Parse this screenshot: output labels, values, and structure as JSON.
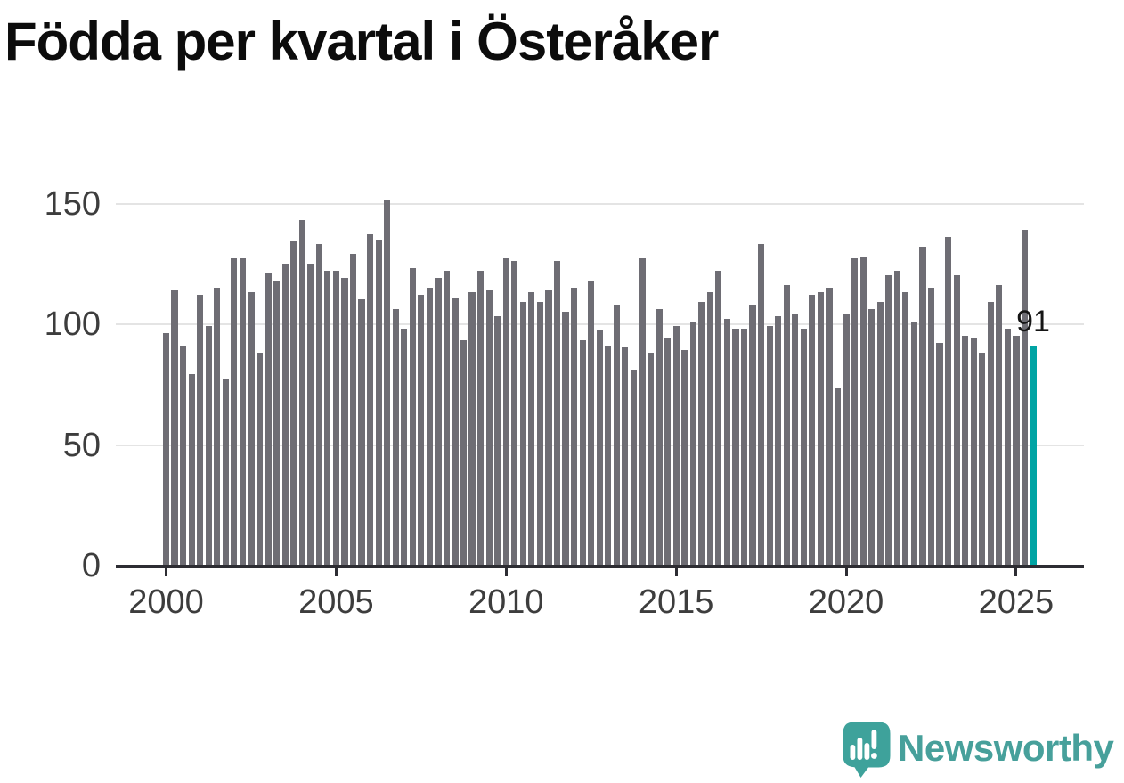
{
  "title": "Födda per kvartal i Österåker",
  "y_axis": {
    "ticks": [
      "150",
      "100",
      "50",
      "0"
    ],
    "tick_values": [
      150,
      100,
      50,
      0
    ]
  },
  "x_axis": {
    "ticks": [
      "2000",
      "2005",
      "2010",
      "2015",
      "2020",
      "2025"
    ],
    "tick_years": [
      2000,
      2005,
      2010,
      2015,
      2020,
      2025
    ]
  },
  "annotation": {
    "last_value_label": "91"
  },
  "logo": {
    "text": "Newsworthy"
  },
  "colors": {
    "bar": "#6e6d74",
    "highlight": "#00a4a4",
    "gridline": "#e4e4e4",
    "axis": "#2d2d33",
    "tick_label": "#3d3d3d",
    "title": "#0c0c0c",
    "logo_teal": "#3ea29b",
    "logo_text_teal": "#47a09b"
  },
  "chart_data": {
    "type": "bar",
    "title": "Födda per kvartal i Österåker",
    "xlabel": "",
    "ylabel": "",
    "ylim": [
      0,
      155
    ],
    "y_ticks": [
      0,
      50,
      100,
      150
    ],
    "x_tick_years": [
      2000,
      2005,
      2010,
      2015,
      2020,
      2025
    ],
    "grid": "horizontal",
    "legend": "none",
    "categories": [
      "2000-Q1",
      "2000-Q2",
      "2000-Q3",
      "2000-Q4",
      "2001-Q1",
      "2001-Q2",
      "2001-Q3",
      "2001-Q4",
      "2002-Q1",
      "2002-Q2",
      "2002-Q3",
      "2002-Q4",
      "2003-Q1",
      "2003-Q2",
      "2003-Q3",
      "2003-Q4",
      "2004-Q1",
      "2004-Q2",
      "2004-Q3",
      "2004-Q4",
      "2005-Q1",
      "2005-Q2",
      "2005-Q3",
      "2005-Q4",
      "2006-Q1",
      "2006-Q2",
      "2006-Q3",
      "2006-Q4",
      "2007-Q1",
      "2007-Q2",
      "2007-Q3",
      "2007-Q4",
      "2008-Q1",
      "2008-Q2",
      "2008-Q3",
      "2008-Q4",
      "2009-Q1",
      "2009-Q2",
      "2009-Q3",
      "2009-Q4",
      "2010-Q1",
      "2010-Q2",
      "2010-Q3",
      "2010-Q4",
      "2011-Q1",
      "2011-Q2",
      "2011-Q3",
      "2011-Q4",
      "2012-Q1",
      "2012-Q2",
      "2012-Q3",
      "2012-Q4",
      "2013-Q1",
      "2013-Q2",
      "2013-Q3",
      "2013-Q4",
      "2014-Q1",
      "2014-Q2",
      "2014-Q3",
      "2014-Q4",
      "2015-Q1",
      "2015-Q2",
      "2015-Q3",
      "2015-Q4",
      "2016-Q1",
      "2016-Q2",
      "2016-Q3",
      "2016-Q4",
      "2017-Q1",
      "2017-Q2",
      "2017-Q3",
      "2017-Q4",
      "2018-Q1",
      "2018-Q2",
      "2018-Q3",
      "2018-Q4",
      "2019-Q1",
      "2019-Q2",
      "2019-Q3",
      "2019-Q4",
      "2020-Q1",
      "2020-Q2",
      "2020-Q3",
      "2020-Q4",
      "2021-Q1",
      "2021-Q2",
      "2021-Q3",
      "2021-Q4",
      "2022-Q1",
      "2022-Q2",
      "2022-Q3",
      "2022-Q4",
      "2023-Q1",
      "2023-Q2",
      "2023-Q3",
      "2023-Q4",
      "2024-Q1",
      "2024-Q2",
      "2024-Q3",
      "2024-Q4",
      "2025-Q1",
      "2025-Q2",
      "2025-Q3"
    ],
    "values": [
      96,
      114,
      91,
      79,
      112,
      99,
      115,
      77,
      127,
      127,
      113,
      88,
      121,
      118,
      125,
      134,
      143,
      125,
      133,
      122,
      122,
      119,
      129,
      110,
      137,
      135,
      151,
      106,
      98,
      123,
      112,
      115,
      119,
      122,
      111,
      93,
      113,
      122,
      114,
      103,
      127,
      126,
      109,
      113,
      109,
      114,
      126,
      105,
      115,
      93,
      118,
      97,
      91,
      108,
      90,
      81,
      127,
      88,
      106,
      94,
      99,
      89,
      101,
      109,
      113,
      122,
      102,
      98,
      98,
      108,
      133,
      99,
      103,
      116,
      104,
      98,
      112,
      113,
      115,
      73,
      104,
      127,
      128,
      106,
      109,
      120,
      122,
      113,
      101,
      132,
      115,
      92,
      136,
      120,
      95,
      94,
      88,
      109,
      116,
      98,
      95,
      139,
      91
    ],
    "highlight_index": 102,
    "highlight_value_label": "91"
  }
}
